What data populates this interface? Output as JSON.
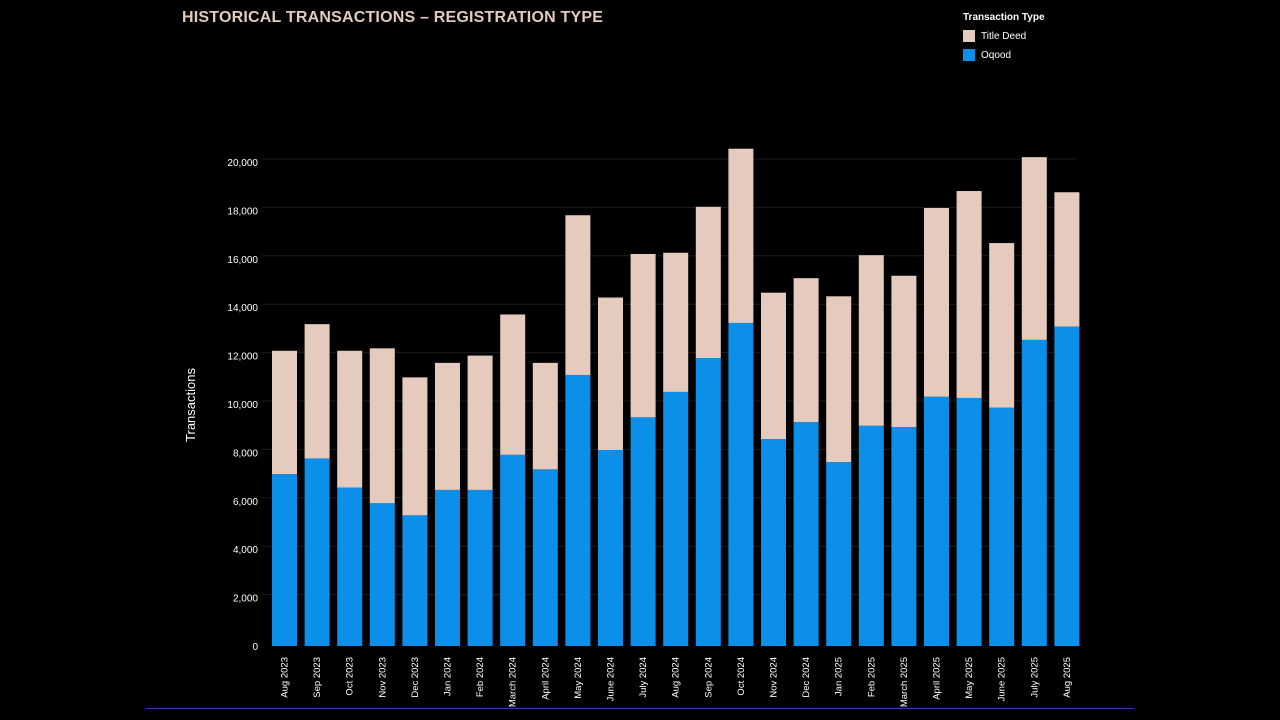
{
  "title": "HISTORICAL TRANSACTIONS – REGISTRATION TYPE",
  "legend": {
    "title": "Transaction Type",
    "items": [
      {
        "label": "Title Deed",
        "color": "#e5cbbd"
      },
      {
        "label": "Oqood",
        "color": "#0b8fe8"
      }
    ]
  },
  "chart_data": {
    "type": "bar",
    "stacked": true,
    "ylabel": "Transactions",
    "xlabel": "",
    "ylim": [
      0,
      20000
    ],
    "yticks": [
      0,
      2000,
      4000,
      6000,
      8000,
      10000,
      12000,
      14000,
      16000,
      18000,
      20000
    ],
    "ytick_labels": [
      "0",
      "2,000",
      "4,000",
      "6,000",
      "8,000",
      "10,000",
      "12,000",
      "14,000",
      "16,000",
      "18,000",
      "20,000"
    ],
    "grid": true,
    "legend_position": "top-right",
    "categories": [
      "Aug 2023",
      "Sep 2023",
      "Oct 2023",
      "Nov 2023",
      "Dec 2023",
      "Jan 2024",
      "Feb 2024",
      "March 2024",
      "April 2024",
      "May 2024",
      "June 2024",
      "July 2024",
      "Aug 2024",
      "Sep 2024",
      "Oct 2024",
      "Nov 2024",
      "Dec 2024",
      "Jan 2025",
      "Feb 2025",
      "March 2025",
      "April 2025",
      "May 2025",
      "June 2025",
      "July 2025",
      "Aug 2025"
    ],
    "series": [
      {
        "name": "Oqood",
        "color": "#0b8fe8",
        "values": [
          7100,
          7750,
          6550,
          5900,
          5400,
          6450,
          6450,
          7900,
          7300,
          11200,
          8100,
          9450,
          10500,
          11900,
          13350,
          8550,
          9250,
          7600,
          9100,
          9050,
          10300,
          10250,
          9850,
          12650,
          13200
        ]
      },
      {
        "name": "Title Deed",
        "color": "#e5cbbd",
        "values": [
          5100,
          5550,
          5650,
          6400,
          5700,
          5250,
          5550,
          5800,
          4400,
          6600,
          6300,
          6750,
          5750,
          6250,
          7200,
          6050,
          5950,
          6850,
          7050,
          6250,
          7800,
          8550,
          6800,
          7550,
          5550
        ]
      }
    ]
  }
}
